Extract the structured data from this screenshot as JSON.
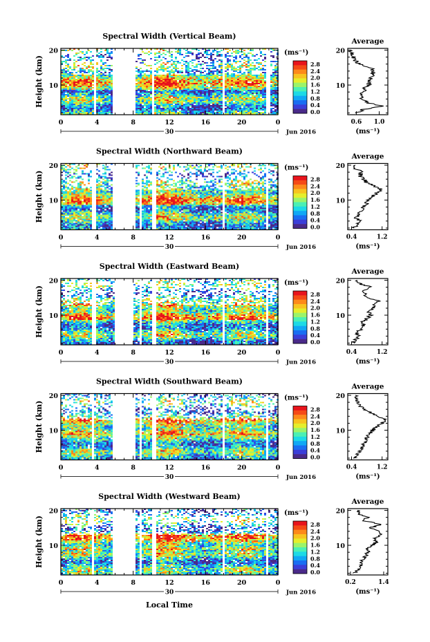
{
  "xlabel": "Local Time",
  "date_label": "Jun 2016",
  "day_label": "30",
  "unit_label": "(ms⁻¹)",
  "colorbar_ticks": [
    "2.8",
    "2.4",
    "2.0",
    "1.6",
    "1.2",
    "0.8",
    "0.4",
    "0.0"
  ],
  "colorbar_colors": [
    "#e8141c",
    "#f54a16",
    "#fd8a1a",
    "#f8c31f",
    "#e5ee2c",
    "#9bf46a",
    "#4bf0b4",
    "#1ddae6",
    "#10a8f5",
    "#1a6ef2",
    "#3b3fd9",
    "#4a2a8a"
  ],
  "colors": {
    "gap": "#ffffff",
    "frame": "#000000"
  },
  "chart_data": [
    {
      "type": "heatmap",
      "title": "Spectral Width (Vertical Beam)",
      "ylabel": "Height (km)",
      "x_ticks": [
        "0",
        "4",
        "8",
        "12",
        "16",
        "20",
        "0"
      ],
      "y_ticks": [
        "20",
        "10"
      ],
      "xlim": [
        0,
        24
      ],
      "ylim": [
        1.5,
        20.5
      ],
      "data_gaps_hours": [
        [
          3.5,
          3.8
        ],
        [
          5.7,
          8.2
        ],
        [
          9.9,
          10.3
        ],
        [
          17.7,
          18.0
        ],
        [
          22.7,
          23.1
        ]
      ],
      "avg_title": "Average",
      "avg_xlabel": "(ms⁻¹)",
      "avg_x_ticks": [
        "0.6",
        "1.0"
      ],
      "avg_xlim": [
        0.45,
        1.15
      ],
      "avg_y_ticks": [
        "20",
        "10"
      ],
      "average_profile": {
        "height_km": [
          2,
          3,
          4,
          5,
          6,
          7,
          8,
          9,
          10,
          11,
          12,
          13,
          14,
          15,
          16,
          17,
          18,
          19,
          20
        ],
        "value": [
          0.62,
          0.72,
          1.05,
          0.78,
          0.7,
          0.66,
          0.72,
          0.74,
          0.82,
          0.8,
          0.86,
          0.88,
          0.9,
          0.86,
          0.66,
          0.58,
          0.55,
          0.52,
          0.5
        ]
      }
    },
    {
      "type": "heatmap",
      "title": "Spectral Width (Northward Beam)",
      "ylabel": "Height (km)",
      "x_ticks": [
        "0",
        "4",
        "8",
        "12",
        "16",
        "20",
        "0"
      ],
      "y_ticks": [
        "20",
        "10"
      ],
      "xlim": [
        0,
        24
      ],
      "ylim": [
        1.5,
        20.5
      ],
      "data_gaps_hours": [
        [
          3.4,
          3.7
        ],
        [
          5.7,
          8.1
        ],
        [
          8.6,
          8.8
        ],
        [
          10.0,
          10.4
        ],
        [
          17.7,
          18.0
        ],
        [
          22.5,
          22.9
        ]
      ],
      "avg_title": "Average",
      "avg_xlabel": "(ms⁻¹)",
      "avg_x_ticks": [
        "0.4",
        "1.2"
      ],
      "avg_xlim": [
        0.3,
        1.35
      ],
      "avg_y_ticks": [
        "20",
        "10"
      ],
      "average_profile": {
        "height_km": [
          2,
          3,
          4,
          5,
          6,
          7,
          8,
          9,
          10,
          11,
          12,
          13,
          14,
          15,
          16,
          17,
          18,
          19,
          20
        ],
        "value": [
          0.45,
          0.55,
          0.62,
          0.5,
          0.58,
          0.66,
          0.72,
          0.78,
          0.85,
          0.95,
          1.05,
          1.18,
          1.0,
          0.8,
          0.72,
          0.62,
          0.66,
          0.52,
          0.5
        ]
      }
    },
    {
      "type": "heatmap",
      "title": "Spectral Width (Eastward Beam)",
      "ylabel": "Height (km)",
      "x_ticks": [
        "0",
        "4",
        "8",
        "12",
        "16",
        "20",
        "0"
      ],
      "y_ticks": [
        "20",
        "10"
      ],
      "xlim": [
        0,
        24
      ],
      "ylim": [
        1.5,
        20.5
      ],
      "data_gaps_hours": [
        [
          3.4,
          3.7
        ],
        [
          5.8,
          8.0
        ],
        [
          8.6,
          8.8
        ],
        [
          10.0,
          10.4
        ],
        [
          17.7,
          18.0
        ],
        [
          22.5,
          22.9
        ]
      ],
      "avg_title": "Average",
      "avg_xlabel": "(ms⁻¹)",
      "avg_x_ticks": [
        "0.4",
        "1.2"
      ],
      "avg_xlim": [
        0.3,
        1.35
      ],
      "avg_y_ticks": [
        "20",
        "10"
      ],
      "average_profile": {
        "height_km": [
          2,
          3,
          4,
          5,
          6,
          7,
          8,
          9,
          10,
          11,
          12,
          13,
          14,
          15,
          16,
          17,
          18,
          19,
          20
        ],
        "value": [
          0.42,
          0.5,
          0.58,
          0.55,
          0.65,
          0.72,
          0.68,
          0.8,
          0.9,
          0.85,
          0.95,
          1.0,
          1.12,
          0.85,
          0.75,
          0.68,
          0.9,
          0.62,
          0.55
        ]
      }
    },
    {
      "type": "heatmap",
      "title": "Spectral Width (Southward Beam)",
      "ylabel": "Height (km)",
      "x_ticks": [
        "0",
        "4",
        "8",
        "12",
        "16",
        "20",
        "0"
      ],
      "y_ticks": [
        "20",
        "10"
      ],
      "xlim": [
        0,
        24
      ],
      "ylim": [
        1.5,
        20.5
      ],
      "data_gaps_hours": [
        [
          3.3,
          3.6
        ],
        [
          5.7,
          8.2
        ],
        [
          8.6,
          8.8
        ],
        [
          10.0,
          10.4
        ],
        [
          17.7,
          18.0
        ],
        [
          22.5,
          22.9
        ]
      ],
      "avg_title": "Average",
      "avg_xlabel": "(ms⁻¹)",
      "avg_x_ticks": [
        "0.4",
        "1.2"
      ],
      "avg_xlim": [
        0.3,
        1.35
      ],
      "avg_y_ticks": [
        "20",
        "10"
      ],
      "average_profile": {
        "height_km": [
          2,
          3,
          4,
          5,
          6,
          7,
          8,
          9,
          10,
          11,
          12,
          13,
          14,
          15,
          16,
          17,
          18,
          19,
          20
        ],
        "value": [
          0.45,
          0.55,
          0.62,
          0.68,
          0.72,
          0.78,
          0.82,
          0.88,
          0.95,
          1.05,
          1.2,
          1.28,
          1.1,
          0.9,
          0.72,
          0.6,
          0.55,
          0.52,
          0.5
        ]
      }
    },
    {
      "type": "heatmap",
      "title": "Spectral Width (Westward Beam)",
      "ylabel": "Height (km)",
      "x_ticks": [
        "0",
        "4",
        "8",
        "12",
        "16",
        "20",
        "0"
      ],
      "y_ticks": [
        "20",
        "10"
      ],
      "xlim": [
        0,
        24
      ],
      "ylim": [
        1.5,
        20.5
      ],
      "data_gaps_hours": [
        [
          3.3,
          3.6
        ],
        [
          5.7,
          8.2
        ],
        [
          8.6,
          8.8
        ],
        [
          10.0,
          10.4
        ],
        [
          17.7,
          18.0
        ],
        [
          22.5,
          22.9
        ]
      ],
      "avg_title": "Average",
      "avg_xlabel": "(ms⁻¹)",
      "avg_x_ticks": [
        "0.2",
        "1.4"
      ],
      "avg_xlim": [
        0.1,
        1.55
      ],
      "avg_y_ticks": [
        "20",
        "10"
      ],
      "average_profile": {
        "height_km": [
          2,
          3,
          4,
          5,
          6,
          7,
          8,
          9,
          10,
          11,
          12,
          13,
          14,
          15,
          16,
          17,
          18,
          19,
          20
        ],
        "value": [
          0.35,
          0.45,
          0.6,
          0.55,
          0.65,
          0.75,
          0.85,
          0.8,
          1.0,
          1.15,
          1.05,
          1.3,
          1.2,
          0.9,
          1.35,
          0.7,
          0.8,
          0.5,
          0.45
        ]
      }
    }
  ]
}
